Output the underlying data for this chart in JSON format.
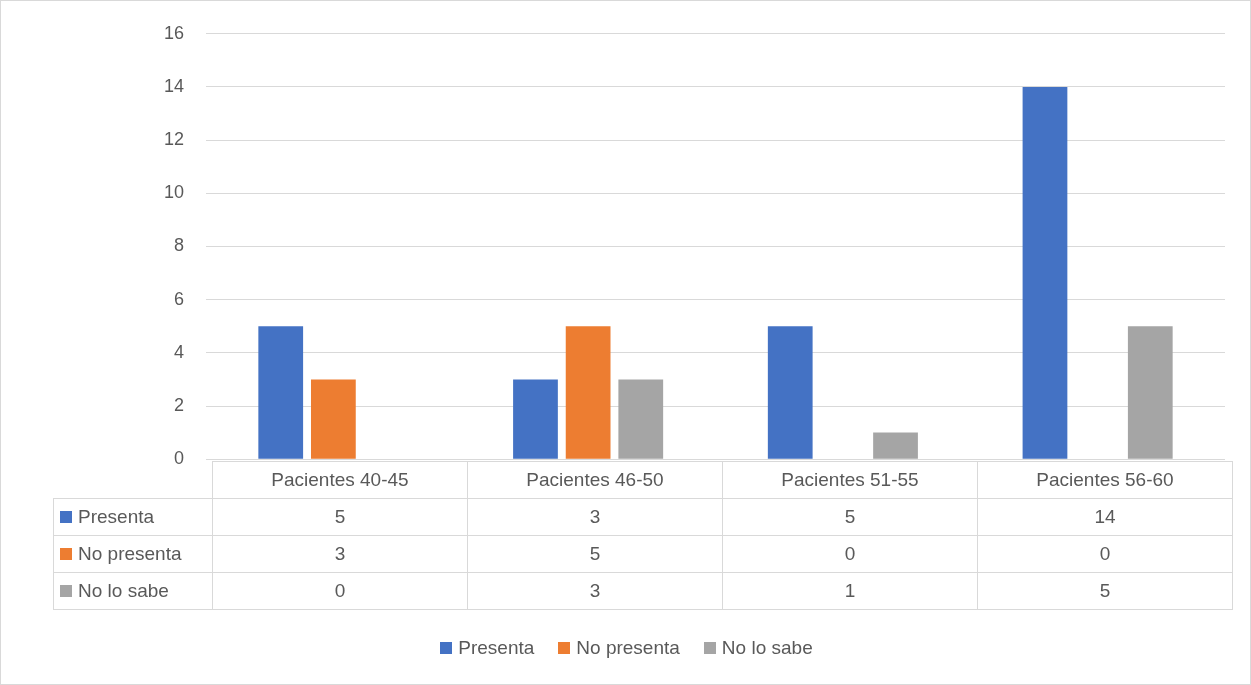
{
  "chart_data": {
    "type": "bar",
    "categories": [
      "Pacientes 40-45",
      "Pacientes 46-50",
      "Pacientes 51-55",
      "Pacientes 56-60"
    ],
    "series": [
      {
        "name": "Presenta",
        "color": "#4472c4",
        "values": [
          5,
          3,
          5,
          14
        ]
      },
      {
        "name": "No presenta",
        "color": "#ed7d31",
        "values": [
          3,
          5,
          0,
          0
        ]
      },
      {
        "name": "No lo sabe",
        "color": "#a5a5a5",
        "values": [
          0,
          3,
          1,
          5
        ]
      }
    ],
    "ylim": [
      0,
      16
    ],
    "yticks": [
      0,
      2,
      4,
      6,
      8,
      10,
      12,
      14,
      16
    ],
    "grid": "y",
    "legend": "bottom",
    "data_labels": true
  }
}
